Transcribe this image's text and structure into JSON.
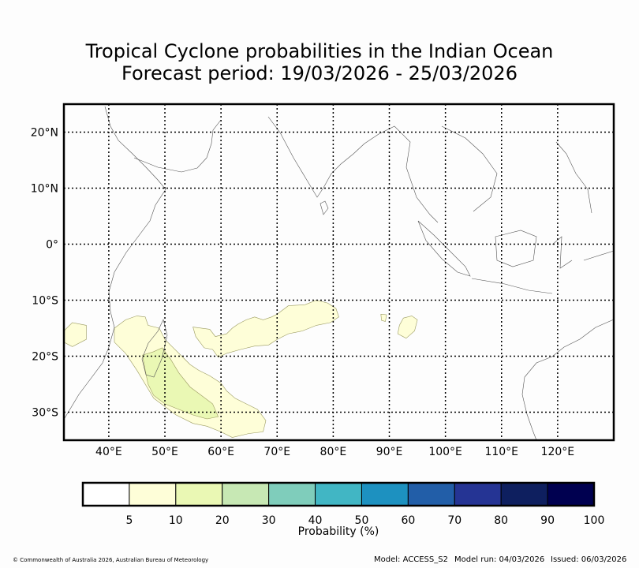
{
  "title": {
    "line1": "Tropical Cyclone probabilities in the Indian Ocean",
    "line2": "Forecast period: 19/03/2026 - 25/03/2026"
  },
  "map": {
    "lon_range": [
      32,
      130
    ],
    "lat_range": [
      -35,
      25
    ],
    "lon_ticks": [
      {
        "lon": 40,
        "label": "40°E"
      },
      {
        "lon": 50,
        "label": "50°E"
      },
      {
        "lon": 60,
        "label": "60°E"
      },
      {
        "lon": 70,
        "label": "70°E"
      },
      {
        "lon": 80,
        "label": "80°E"
      },
      {
        "lon": 90,
        "label": "90°E"
      },
      {
        "lon": 100,
        "label": "100°E"
      },
      {
        "lon": 110,
        "label": "110°E"
      },
      {
        "lon": 120,
        "label": "120°E"
      }
    ],
    "lat_ticks": [
      {
        "lat": 20,
        "label": "20°N"
      },
      {
        "lat": 10,
        "label": "10°N"
      },
      {
        "lat": 0,
        "label": "0°"
      },
      {
        "lat": -10,
        "label": "10°S"
      },
      {
        "lat": -20,
        "label": "20°S"
      },
      {
        "lat": -30,
        "label": "30°S"
      }
    ],
    "regions": [
      {
        "level": "5-10",
        "color": "#fefed8",
        "pts": [
          [
            32,
            -15.5
          ],
          [
            33.5,
            -14
          ],
          [
            36,
            -14.5
          ],
          [
            36,
            -17
          ],
          [
            33.5,
            -18.3
          ],
          [
            32,
            -17.5
          ]
        ]
      },
      {
        "level": "5-10",
        "color": "#fefed8",
        "pts": [
          [
            41,
            -15
          ],
          [
            43,
            -13.5
          ],
          [
            45,
            -12.8
          ],
          [
            46.5,
            -13
          ],
          [
            47,
            -14.5
          ],
          [
            49,
            -15
          ],
          [
            50,
            -17
          ],
          [
            51.5,
            -18.5
          ],
          [
            53,
            -20
          ],
          [
            54.5,
            -21.5
          ],
          [
            56,
            -22.5
          ],
          [
            58,
            -23.5
          ],
          [
            60,
            -24.8
          ],
          [
            61,
            -26.2
          ],
          [
            62.5,
            -27.5
          ],
          [
            64.5,
            -28.5
          ],
          [
            66.5,
            -29.5
          ],
          [
            68,
            -31.5
          ],
          [
            67.5,
            -33.5
          ],
          [
            65,
            -33.8
          ],
          [
            62,
            -34.5
          ],
          [
            60,
            -33.5
          ],
          [
            57.5,
            -32.5
          ],
          [
            55,
            -32
          ],
          [
            52,
            -30.5
          ],
          [
            50,
            -29
          ],
          [
            48,
            -27.5
          ],
          [
            46.5,
            -25
          ],
          [
            45,
            -22.5
          ],
          [
            43,
            -19.5
          ],
          [
            41,
            -17.5
          ]
        ]
      },
      {
        "level": "10-20",
        "color": "#eaf8b4",
        "pts": [
          [
            46,
            -19.8
          ],
          [
            48,
            -19.2
          ],
          [
            49.5,
            -18.5
          ],
          [
            51,
            -20.5
          ],
          [
            52.5,
            -23
          ],
          [
            54.5,
            -25.5
          ],
          [
            56.5,
            -27
          ],
          [
            58.5,
            -28.5
          ],
          [
            59.5,
            -30.8
          ],
          [
            57.5,
            -31.2
          ],
          [
            55,
            -30.5
          ],
          [
            52.5,
            -29.5
          ],
          [
            50,
            -28.5
          ],
          [
            48,
            -27
          ],
          [
            47,
            -25
          ],
          [
            46.5,
            -22.5
          ]
        ]
      },
      {
        "level": "5-10",
        "color": "#fefed8",
        "pts": [
          [
            55,
            -14.8
          ],
          [
            58,
            -15.2
          ],
          [
            59,
            -16.5
          ],
          [
            61,
            -16
          ],
          [
            62,
            -15
          ],
          [
            63,
            -14.3
          ],
          [
            64.5,
            -13.5
          ],
          [
            66,
            -13
          ],
          [
            67.5,
            -13.5
          ],
          [
            69,
            -13
          ],
          [
            70,
            -12.5
          ],
          [
            72,
            -11
          ],
          [
            75,
            -10.8
          ],
          [
            77,
            -10
          ],
          [
            79,
            -10.5
          ],
          [
            80.5,
            -11.5
          ],
          [
            81,
            -13
          ],
          [
            79.5,
            -14
          ],
          [
            77,
            -14.5
          ],
          [
            74.5,
            -15.5
          ],
          [
            72,
            -16
          ],
          [
            70,
            -17
          ],
          [
            68.5,
            -18
          ],
          [
            66,
            -18.2
          ],
          [
            63.5,
            -18.8
          ],
          [
            61,
            -19.5
          ],
          [
            59.5,
            -20.2
          ],
          [
            58.5,
            -18.8
          ],
          [
            57,
            -18.5
          ],
          [
            55.5,
            -16.5
          ]
        ]
      },
      {
        "level": "5-10",
        "color": "#fefed8",
        "pts": [
          [
            92.5,
            -13.2
          ],
          [
            94,
            -12.8
          ],
          [
            95,
            -13.5
          ],
          [
            94.5,
            -15.5
          ],
          [
            93,
            -16.8
          ],
          [
            91.5,
            -16
          ],
          [
            91.8,
            -14.5
          ]
        ]
      },
      {
        "level": "5-10",
        "color": "#fefed8",
        "pts": [
          [
            88.5,
            -12.5
          ],
          [
            89.5,
            -12.6
          ],
          [
            89.3,
            -13.8
          ],
          [
            88.6,
            -13.6
          ]
        ]
      }
    ]
  },
  "legend": {
    "title": "Probability (%)",
    "colors": [
      "#ffffff",
      "#fefed8",
      "#eaf8b4",
      "#c7e8b4",
      "#7fcdbb",
      "#41b6c4",
      "#1d91c0",
      "#225ea8",
      "#253494",
      "#0e1f5f",
      "#000050"
    ],
    "labels": [
      "5",
      "10",
      "20",
      "30",
      "40",
      "50",
      "60",
      "70",
      "80",
      "90",
      "100"
    ]
  },
  "footer": {
    "copyright": "© Commonwealth of Australia 2026, Australian Bureau of Meteorology",
    "model": "Model: ACCESS_S2",
    "run": "Model run: 04/03/2026",
    "issued": "Issued: 06/03/2026"
  }
}
